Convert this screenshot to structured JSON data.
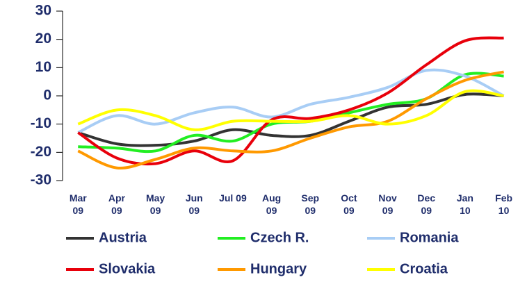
{
  "chart_data": {
    "type": "line",
    "categories": [
      "Mar 09",
      "Apr 09",
      "May 09",
      "Jun 09",
      "Jul 09",
      "Aug 09",
      "Sep 09",
      "Oct 09",
      "Nov 09",
      "Dec 09",
      "Jan 10",
      "Feb 10"
    ],
    "series": [
      {
        "name": "Austria",
        "color": "#333333",
        "values": [
          -13,
          -17,
          -17.5,
          -16,
          -12,
          -14,
          -14,
          -9,
          -4,
          -3,
          0.5,
          0
        ]
      },
      {
        "name": "Czech R.",
        "color": "#22ee22",
        "values": [
          -18,
          -18.5,
          -19.5,
          -14,
          -16,
          -10,
          -9,
          -6,
          -3,
          -1,
          7.5,
          7
        ]
      },
      {
        "name": "Romania",
        "color": "#a8cdf5",
        "values": [
          -13,
          -7,
          -10,
          -6,
          -4,
          -7.5,
          -3,
          -0.5,
          3,
          9,
          7,
          0
        ]
      },
      {
        "name": "Slovakia",
        "color": "#e8000b",
        "values": [
          -13,
          -22,
          -24,
          -19.5,
          -23,
          -8.5,
          -8,
          -5,
          1,
          11,
          19.5,
          20.5
        ]
      },
      {
        "name": "Hungary",
        "color": "#ff9900",
        "values": [
          -19.5,
          -25.5,
          -22.5,
          -18.5,
          -19.5,
          -19.5,
          -15,
          -11,
          -9,
          -1,
          5.5,
          8.5
        ]
      },
      {
        "name": "Croatia",
        "color": "#ffff00",
        "values": [
          -10,
          -5,
          -7,
          -12,
          -9,
          -9,
          -9,
          -7,
          -10,
          -7,
          1.5,
          0
        ]
      }
    ],
    "ylim": [
      -30,
      30
    ],
    "yticks": [
      -30,
      -20,
      -10,
      0,
      10,
      20,
      30
    ],
    "grid": false,
    "legend": "bottom"
  }
}
